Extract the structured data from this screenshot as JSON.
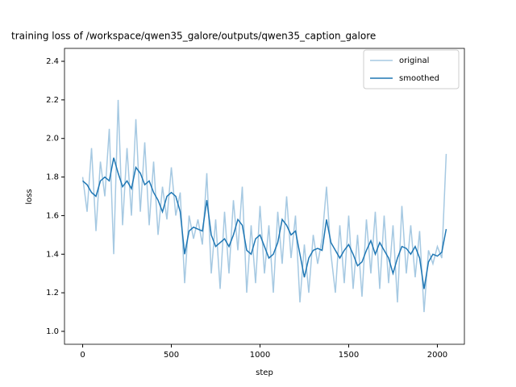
{
  "chart_data": {
    "type": "line",
    "title": "training loss of /workspace/qwen35_galore/outputs/qwen35_caption_galore",
    "x_label": "step",
    "y_label": "loss",
    "x": [
      0,
      25,
      50,
      75,
      100,
      125,
      150,
      175,
      200,
      225,
      250,
      275,
      300,
      325,
      350,
      375,
      400,
      425,
      450,
      475,
      500,
      525,
      550,
      575,
      600,
      625,
      650,
      675,
      700,
      725,
      750,
      775,
      800,
      825,
      850,
      875,
      900,
      925,
      950,
      975,
      1000,
      1025,
      1050,
      1075,
      1100,
      1125,
      1150,
      1175,
      1200,
      1225,
      1250,
      1275,
      1300,
      1325,
      1350,
      1375,
      1400,
      1425,
      1450,
      1475,
      1500,
      1525,
      1550,
      1575,
      1600,
      1625,
      1650,
      1675,
      1700,
      1725,
      1750,
      1775,
      1800,
      1825,
      1850,
      1875,
      1900,
      1925,
      1950,
      1975,
      2000,
      2025,
      2050
    ],
    "series": [
      {
        "name": "original",
        "color": "#a6c9e2",
        "values": [
          1.8,
          1.62,
          1.95,
          1.52,
          1.88,
          1.7,
          2.05,
          1.4,
          2.2,
          1.55,
          1.95,
          1.6,
          2.1,
          1.62,
          1.98,
          1.55,
          1.88,
          1.5,
          1.75,
          1.58,
          1.85,
          1.6,
          1.72,
          1.25,
          1.6,
          1.48,
          1.58,
          1.45,
          1.82,
          1.3,
          1.58,
          1.22,
          1.62,
          1.3,
          1.68,
          1.42,
          1.75,
          1.2,
          1.55,
          1.25,
          1.65,
          1.3,
          1.55,
          1.2,
          1.62,
          1.35,
          1.7,
          1.38,
          1.6,
          1.15,
          1.45,
          1.2,
          1.5,
          1.35,
          1.48,
          1.75,
          1.4,
          1.2,
          1.55,
          1.25,
          1.6,
          1.22,
          1.5,
          1.18,
          1.58,
          1.3,
          1.62,
          1.22,
          1.6,
          1.25,
          1.55,
          1.15,
          1.65,
          1.3,
          1.55,
          1.28,
          1.52,
          1.1,
          1.42,
          1.35,
          1.44,
          1.38,
          1.92
        ]
      },
      {
        "name": "smoothed",
        "color": "#1f77b4",
        "values": [
          1.78,
          1.76,
          1.72,
          1.7,
          1.78,
          1.8,
          1.78,
          1.9,
          1.82,
          1.75,
          1.78,
          1.74,
          1.85,
          1.82,
          1.76,
          1.78,
          1.72,
          1.68,
          1.62,
          1.7,
          1.72,
          1.7,
          1.62,
          1.4,
          1.52,
          1.54,
          1.53,
          1.52,
          1.68,
          1.5,
          1.44,
          1.46,
          1.48,
          1.44,
          1.5,
          1.58,
          1.55,
          1.42,
          1.4,
          1.48,
          1.5,
          1.44,
          1.38,
          1.4,
          1.46,
          1.58,
          1.55,
          1.5,
          1.52,
          1.4,
          1.28,
          1.38,
          1.42,
          1.43,
          1.42,
          1.58,
          1.46,
          1.42,
          1.38,
          1.42,
          1.45,
          1.4,
          1.34,
          1.36,
          1.42,
          1.47,
          1.4,
          1.46,
          1.42,
          1.38,
          1.3,
          1.38,
          1.44,
          1.43,
          1.4,
          1.44,
          1.38,
          1.22,
          1.36,
          1.4,
          1.39,
          1.41,
          1.53
        ]
      }
    ],
    "xlim": [
      -102.5,
      2152.5
    ],
    "xticks": [
      0,
      500,
      1000,
      1500,
      2000
    ],
    "ylim": [
      0.933,
      2.467
    ],
    "yticks": [
      {
        "value": 1,
        "label": "1.0"
      },
      1.2,
      1.4,
      1.6,
      1.8,
      {
        "value": 2,
        "label": "2.0"
      },
      2.2,
      2.4
    ],
    "legend": "upper right"
  }
}
